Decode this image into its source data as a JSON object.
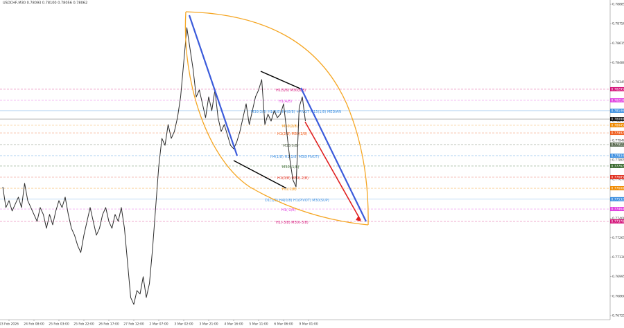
{
  "chart_data": {
    "type": "line",
    "title": "USDCHF,M30  0.78093 0.78100 0.78056 0.78062",
    "categories": [
      null,
      null,
      "23 Feb 2026",
      null,
      null,
      null,
      null,
      null,
      null,
      null,
      "24 Feb 08:00",
      null,
      null,
      null,
      null,
      null,
      null,
      null,
      "25 Feb 03:00",
      null,
      null,
      null,
      null,
      null,
      null,
      null,
      "25 Feb 22:00",
      null,
      null,
      null,
      null,
      null,
      null,
      null,
      "26 Feb 17:00",
      null,
      null,
      null,
      null,
      null,
      null,
      null,
      "27 Feb 12:00",
      null,
      null,
      null,
      null,
      null,
      null,
      null,
      "2 Mar 07:00",
      null,
      null,
      null,
      null,
      null,
      null,
      null,
      "3 Mar 02:00",
      null,
      null,
      null,
      null,
      null,
      null,
      null,
      "3 Mar 21:00",
      null,
      null,
      null,
      null,
      null,
      null,
      null,
      "4 Mar 16:00",
      null,
      null,
      null,
      null,
      null,
      null,
      null,
      "5 Mar 11:00",
      null,
      null,
      null,
      null,
      null,
      null,
      null,
      "6 Mar 06:00",
      null,
      null,
      null,
      null,
      null,
      null,
      null,
      "9 Mar 01:00"
    ],
    "series": [
      {
        "name": "USDCHF",
        "color": "#2b2b2b",
        "values": [
          0.77618,
          0.77474,
          0.77522,
          0.7745,
          0.77498,
          0.77546,
          0.77474,
          0.77642,
          0.77522,
          0.77474,
          0.77426,
          0.77378,
          0.77474,
          0.77426,
          0.7733,
          0.77426,
          0.77354,
          0.7745,
          0.77522,
          0.77474,
          0.77546,
          0.77426,
          0.7733,
          0.77282,
          0.7721,
          0.77162,
          0.77282,
          0.77378,
          0.77474,
          0.77378,
          0.77282,
          0.7733,
          0.77426,
          0.77474,
          0.77378,
          0.7733,
          0.77426,
          0.77378,
          0.77474,
          0.7733,
          0.7709,
          0.7685,
          0.76802,
          0.76898,
          0.76874,
          0.76994,
          0.7685,
          0.76946,
          0.77186,
          0.77474,
          0.77762,
          0.77954,
          0.77906,
          0.7805,
          0.77954,
          0.78002,
          0.78098,
          0.78242,
          0.78482,
          0.78722,
          0.78578,
          0.78434,
          0.78242,
          0.7829,
          0.78194,
          0.78098,
          0.78242,
          0.78146,
          0.7829,
          0.78098,
          0.78002,
          0.7805,
          0.77978,
          0.77906,
          0.77882,
          0.7793,
          0.78002,
          0.78098,
          0.78194,
          0.7805,
          0.78146,
          0.78242,
          0.7829,
          0.78362,
          0.7805,
          0.78122,
          0.78074,
          0.78146,
          0.78098,
          0.78122,
          0.78194,
          0.78002,
          0.7781,
          0.77666,
          0.77618,
          0.7817,
          0.78242,
          0.78074,
          null
        ]
      }
    ],
    "ylim": [
      0.76696,
      0.78914
    ],
    "yticks": [
      0.76725,
      {
        "value": 0.7686,
        "label": "0.76860"
      },
      0.76995,
      {
        "value": 0.7713,
        "label": "0.77130"
      },
      0.77265,
      {
        "value": 0.774,
        "label": "0.77400"
      },
      0.77535,
      {
        "value": 0.7767,
        "label": "0.77670"
      },
      0.77805,
      {
        "value": 0.7794,
        "label": "0.77940"
      },
      0.78075,
      {
        "value": 0.7821,
        "label": "0.78210"
      },
      0.78345,
      {
        "value": 0.7848,
        "label": "0.78480"
      },
      0.78615,
      {
        "value": 0.7875,
        "label": "0.78750"
      },
      0.78885
    ],
    "levels": [
      {
        "value": 0.78295,
        "color": "#d4147a",
        "text": "H1(5/8) M30(8/8)"
      },
      {
        "value": 0.78218,
        "color": "#e040e0",
        "text": "H1(4/8)"
      },
      {
        "value": 0.78146,
        "color": "#3d8fe0",
        "text": "M30(3/8) H1(3/8) H4(8/8) +PIVOT M15(1/8) MEDIAN"
      },
      {
        "value": 0.78088,
        "color": "#111111",
        "text": null
      },
      {
        "value": 0.78045,
        "color": "#f08a00",
        "text": "M30(2/8)"
      },
      {
        "value": 0.77992,
        "color": "#f06020",
        "text": "H1(2/8) M30(1/8)"
      },
      {
        "value": 0.77911,
        "color": "#5a6a50",
        "text": "M30(0/8)"
      },
      {
        "value": 0.77834,
        "color": "#3d8fe0",
        "text": "H4(1/8) H1(1/8) M30(PIVOT)"
      },
      {
        "value": 0.77762,
        "color": "#3a6a30",
        "text": "M30(-1/8)"
      },
      {
        "value": 0.77685,
        "color": "#e03020",
        "text": "H1(0/8) M30(-2/8)"
      },
      {
        "value": 0.77608,
        "color": "#f08a00",
        "text": "H1(-1/8)"
      },
      {
        "value": 0.77532,
        "color": "#3d8fe0",
        "text": "D1(1/8) H4(0/8) H1(PIVOT) M30(SUP)"
      },
      {
        "value": 0.77464,
        "color": "#e040e0",
        "text": "H1(-2/8)"
      },
      {
        "value": 0.77378,
        "color": "#d4147a",
        "text": "H1(-3/8) M30(-3/8)"
      }
    ],
    "level_labels": [
      "0.78295",
      "0.78218",
      "0.78146",
      "0.78088",
      "0.78045",
      "0.77992",
      "0.77911",
      "0.77834",
      "0.77762",
      "0.77685",
      "0.77608",
      "0.77532",
      "0.77464",
      "0.77378"
    ]
  }
}
